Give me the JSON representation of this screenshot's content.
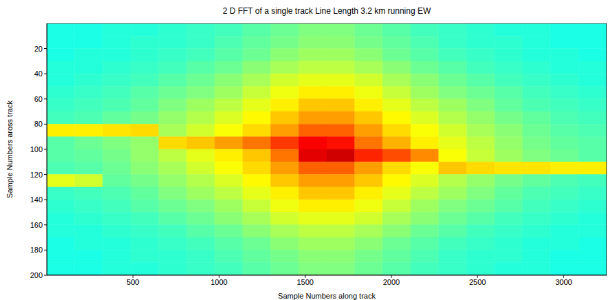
{
  "chart_data": {
    "type": "heatmap",
    "title": "2 D FFT of a single track Line Length 3.2 km running EW",
    "xlabel": "Sample Numbers along track",
    "ylabel": "Sample Numbers aross track",
    "xlim": [
      0,
      3250
    ],
    "ylim": [
      0,
      200
    ],
    "xticks": [
      500,
      1000,
      1500,
      2000,
      2500,
      3000
    ],
    "yticks": [
      20,
      40,
      60,
      80,
      100,
      120,
      140,
      160,
      180,
      200
    ],
    "grid": false,
    "zlim": [
      0,
      1
    ],
    "cell_x_edges": [
      0,
      162.5,
      325,
      487.5,
      650,
      812.5,
      975,
      1137.5,
      1300,
      1462.5,
      1625,
      1787.5,
      1950,
      2112.5,
      2275,
      2437.5,
      2600,
      2762.5,
      2925,
      3087.5,
      3250
    ],
    "cell_y_edges": [
      0,
      10,
      20,
      30,
      40,
      50,
      60,
      70,
      80,
      90,
      100,
      110,
      120,
      130,
      140,
      150,
      160,
      170,
      180,
      190,
      200
    ],
    "cells": [
      [
        0.4,
        0.4,
        0.41,
        0.41,
        0.42,
        0.43,
        0.44,
        0.46,
        0.48,
        0.5,
        0.5,
        0.48,
        0.46,
        0.44,
        0.43,
        0.42,
        0.41,
        0.41,
        0.4,
        0.4
      ],
      [
        0.4,
        0.4,
        0.41,
        0.42,
        0.42,
        0.43,
        0.45,
        0.47,
        0.49,
        0.51,
        0.51,
        0.49,
        0.47,
        0.45,
        0.43,
        0.42,
        0.42,
        0.41,
        0.4,
        0.4
      ],
      [
        0.4,
        0.41,
        0.41,
        0.42,
        0.43,
        0.44,
        0.46,
        0.48,
        0.51,
        0.53,
        0.53,
        0.51,
        0.48,
        0.46,
        0.44,
        0.43,
        0.42,
        0.41,
        0.41,
        0.4
      ],
      [
        0.41,
        0.41,
        0.42,
        0.43,
        0.44,
        0.46,
        0.48,
        0.51,
        0.54,
        0.56,
        0.56,
        0.54,
        0.51,
        0.48,
        0.46,
        0.44,
        0.43,
        0.42,
        0.41,
        0.41
      ],
      [
        0.41,
        0.42,
        0.43,
        0.44,
        0.46,
        0.48,
        0.51,
        0.54,
        0.58,
        0.6,
        0.6,
        0.58,
        0.54,
        0.51,
        0.48,
        0.46,
        0.44,
        0.43,
        0.42,
        0.41
      ],
      [
        0.42,
        0.43,
        0.44,
        0.46,
        0.48,
        0.5,
        0.53,
        0.57,
        0.61,
        0.64,
        0.64,
        0.61,
        0.57,
        0.53,
        0.5,
        0.48,
        0.46,
        0.44,
        0.43,
        0.42
      ],
      [
        0.43,
        0.44,
        0.45,
        0.47,
        0.5,
        0.53,
        0.56,
        0.6,
        0.64,
        0.68,
        0.68,
        0.64,
        0.6,
        0.56,
        0.53,
        0.5,
        0.47,
        0.45,
        0.44,
        0.43
      ],
      [
        0.44,
        0.45,
        0.47,
        0.49,
        0.52,
        0.55,
        0.59,
        0.63,
        0.68,
        0.72,
        0.72,
        0.68,
        0.63,
        0.59,
        0.55,
        0.52,
        0.49,
        0.47,
        0.45,
        0.44
      ],
      [
        0.64,
        0.64,
        0.65,
        0.66,
        0.54,
        0.58,
        0.62,
        0.66,
        0.72,
        0.78,
        0.78,
        0.72,
        0.66,
        0.62,
        0.58,
        0.54,
        0.51,
        0.48,
        0.46,
        0.45
      ],
      [
        0.46,
        0.48,
        0.5,
        0.52,
        0.66,
        0.68,
        0.72,
        0.76,
        0.82,
        0.88,
        0.86,
        0.76,
        0.7,
        0.64,
        0.6,
        0.56,
        0.52,
        0.49,
        0.47,
        0.46
      ],
      [
        0.46,
        0.47,
        0.49,
        0.52,
        0.56,
        0.6,
        0.64,
        0.68,
        0.76,
        0.9,
        0.92,
        0.84,
        0.8,
        0.74,
        0.62,
        0.57,
        0.53,
        0.5,
        0.48,
        0.46
      ],
      [
        0.45,
        0.46,
        0.48,
        0.51,
        0.54,
        0.58,
        0.62,
        0.66,
        0.72,
        0.78,
        0.78,
        0.72,
        0.66,
        0.62,
        0.68,
        0.66,
        0.65,
        0.65,
        0.64,
        0.64
      ],
      [
        0.6,
        0.58,
        0.47,
        0.49,
        0.52,
        0.55,
        0.59,
        0.63,
        0.68,
        0.72,
        0.72,
        0.68,
        0.63,
        0.59,
        0.55,
        0.52,
        0.49,
        0.47,
        0.45,
        0.44
      ],
      [
        0.43,
        0.44,
        0.45,
        0.47,
        0.5,
        0.53,
        0.56,
        0.6,
        0.64,
        0.68,
        0.68,
        0.64,
        0.6,
        0.56,
        0.53,
        0.5,
        0.47,
        0.45,
        0.44,
        0.43
      ],
      [
        0.42,
        0.43,
        0.44,
        0.46,
        0.48,
        0.5,
        0.53,
        0.57,
        0.61,
        0.64,
        0.64,
        0.61,
        0.57,
        0.53,
        0.5,
        0.48,
        0.46,
        0.44,
        0.43,
        0.42
      ],
      [
        0.41,
        0.42,
        0.43,
        0.44,
        0.46,
        0.48,
        0.51,
        0.54,
        0.58,
        0.6,
        0.6,
        0.58,
        0.54,
        0.51,
        0.48,
        0.46,
        0.44,
        0.43,
        0.42,
        0.41
      ],
      [
        0.41,
        0.41,
        0.42,
        0.43,
        0.44,
        0.46,
        0.48,
        0.51,
        0.54,
        0.56,
        0.56,
        0.54,
        0.51,
        0.48,
        0.46,
        0.44,
        0.43,
        0.42,
        0.41,
        0.41
      ],
      [
        0.4,
        0.41,
        0.41,
        0.42,
        0.43,
        0.44,
        0.46,
        0.48,
        0.51,
        0.53,
        0.53,
        0.51,
        0.48,
        0.46,
        0.44,
        0.43,
        0.42,
        0.41,
        0.41,
        0.4
      ],
      [
        0.4,
        0.4,
        0.41,
        0.42,
        0.42,
        0.43,
        0.45,
        0.47,
        0.49,
        0.51,
        0.51,
        0.49,
        0.47,
        0.45,
        0.43,
        0.42,
        0.42,
        0.41,
        0.4,
        0.4
      ],
      [
        0.4,
        0.4,
        0.41,
        0.41,
        0.42,
        0.43,
        0.44,
        0.46,
        0.48,
        0.5,
        0.5,
        0.48,
        0.46,
        0.44,
        0.43,
        0.42,
        0.41,
        0.41,
        0.4,
        0.4
      ]
    ]
  }
}
